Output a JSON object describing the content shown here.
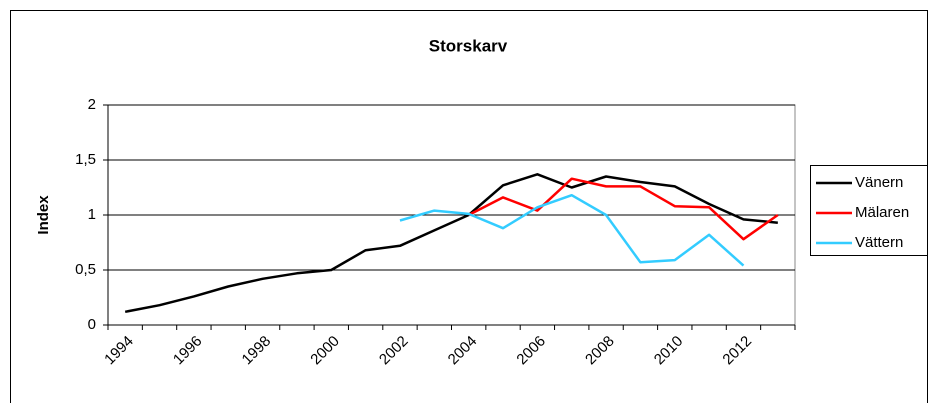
{
  "chart_data": {
    "type": "line",
    "title": "Storskarv",
    "y_label": "Index",
    "categories": [
      "1994",
      null,
      "1996",
      null,
      "1998",
      null,
      "2000",
      null,
      "2002",
      null,
      "2004",
      null,
      "2006",
      null,
      "2008",
      null,
      "2010",
      null,
      "2012",
      null
    ],
    "series": [
      {
        "name": "Vänern",
        "color": "#000000",
        "values": [
          0.12,
          0.18,
          0.26,
          0.35,
          0.42,
          0.47,
          0.5,
          0.68,
          0.72,
          0.86,
          1.0,
          1.27,
          1.37,
          1.25,
          1.35,
          1.3,
          1.26,
          1.1,
          0.96,
          0.93
        ]
      },
      {
        "name": "Mälaren",
        "color": "#ff0000",
        "values": [
          null,
          null,
          null,
          null,
          null,
          null,
          null,
          null,
          null,
          null,
          1.0,
          1.16,
          1.04,
          1.33,
          1.26,
          1.26,
          1.08,
          1.07,
          0.78,
          1.0
        ]
      },
      {
        "name": "Vättern",
        "color": "#33ccff",
        "values": [
          null,
          null,
          null,
          null,
          null,
          null,
          null,
          null,
          0.95,
          1.04,
          1.01,
          0.88,
          1.07,
          1.18,
          1.0,
          0.57,
          0.59,
          0.82,
          0.54,
          null
        ]
      }
    ],
    "ylim": [
      0,
      2
    ],
    "yticks": [
      0,
      {
        "value": 0.5,
        "label": "0,5"
      },
      1,
      {
        "value": 1.5,
        "label": "1,5"
      },
      2
    ],
    "grid": true,
    "legend": "right"
  }
}
